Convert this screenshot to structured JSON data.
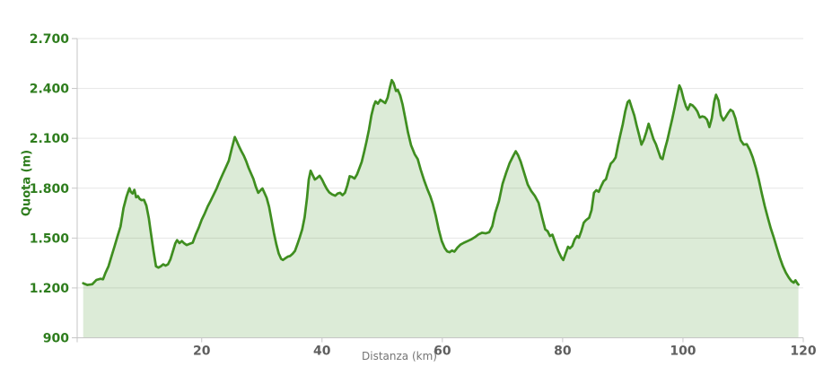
{
  "chart_data": {
    "type": "area",
    "title": "",
    "xlabel": "Distanza (km)",
    "ylabel": "Quota (m)",
    "xlim": [
      -0.7,
      120
    ],
    "ylim": [
      900,
      2700
    ],
    "grid": "horizontal",
    "legend": "none",
    "x_ticks": [
      {
        "value": 20,
        "label": "20"
      },
      {
        "value": 40,
        "label": "40"
      },
      {
        "value": 60,
        "label": "60"
      },
      {
        "value": 80,
        "label": "80"
      },
      {
        "value": 100,
        "label": "100"
      },
      {
        "value": 120,
        "label": "120"
      }
    ],
    "y_ticks": [
      {
        "value": 900,
        "label": "900"
      },
      {
        "value": 1200,
        "label": "1.200"
      },
      {
        "value": 1500,
        "label": "1.500"
      },
      {
        "value": 1800,
        "label": "1.800"
      },
      {
        "value": 2100,
        "label": "2.100"
      },
      {
        "value": 2400,
        "label": "2.400"
      },
      {
        "value": 2700,
        "label": "2.700"
      }
    ],
    "colors": {
      "line": "#3f8e20",
      "fill": "rgba(63,142,32,0.18)",
      "y_label": "#2e7d1d",
      "x_label": "#5f5f5f",
      "axis_title_x": "#757575",
      "grid": "#e6e6e6",
      "axis": "#c6c6c6"
    },
    "series": [
      {
        "name": "Quota",
        "points": [
          [
            0.3,
            1228
          ],
          [
            1,
            1218
          ],
          [
            1.8,
            1222
          ],
          [
            2.5,
            1248
          ],
          [
            3.2,
            1255
          ],
          [
            3.6,
            1252
          ],
          [
            4,
            1290
          ],
          [
            4.5,
            1330
          ],
          [
            5,
            1390
          ],
          [
            5.5,
            1450
          ],
          [
            6,
            1510
          ],
          [
            6.5,
            1570
          ],
          [
            7,
            1680
          ],
          [
            7.5,
            1750
          ],
          [
            7.8,
            1782
          ],
          [
            8,
            1800
          ],
          [
            8.2,
            1778
          ],
          [
            8.5,
            1768
          ],
          [
            8.8,
            1790
          ],
          [
            9.1,
            1745
          ],
          [
            9.4,
            1752
          ],
          [
            9.7,
            1735
          ],
          [
            10,
            1728
          ],
          [
            10.4,
            1730
          ],
          [
            10.8,
            1695
          ],
          [
            11.2,
            1620
          ],
          [
            11.6,
            1520
          ],
          [
            12,
            1420
          ],
          [
            12.4,
            1330
          ],
          [
            12.8,
            1322
          ],
          [
            13.2,
            1330
          ],
          [
            13.6,
            1342
          ],
          [
            14,
            1334
          ],
          [
            14.4,
            1342
          ],
          [
            14.8,
            1372
          ],
          [
            15.2,
            1420
          ],
          [
            15.6,
            1468
          ],
          [
            15.9,
            1487
          ],
          [
            16.3,
            1470
          ],
          [
            16.7,
            1482
          ],
          [
            17.1,
            1468
          ],
          [
            17.5,
            1458
          ],
          [
            18,
            1465
          ],
          [
            18.5,
            1472
          ],
          [
            19,
            1520
          ],
          [
            19.5,
            1562
          ],
          [
            20,
            1610
          ],
          [
            20.5,
            1648
          ],
          [
            21,
            1690
          ],
          [
            21.5,
            1725
          ],
          [
            22,
            1762
          ],
          [
            22.5,
            1800
          ],
          [
            23,
            1845
          ],
          [
            23.5,
            1885
          ],
          [
            24,
            1925
          ],
          [
            24.5,
            1965
          ],
          [
            25,
            2040
          ],
          [
            25.5,
            2108
          ],
          [
            25.8,
            2085
          ],
          [
            26.2,
            2052
          ],
          [
            26.6,
            2022
          ],
          [
            27,
            1995
          ],
          [
            27.4,
            1962
          ],
          [
            27.8,
            1922
          ],
          [
            28.2,
            1888
          ],
          [
            28.6,
            1855
          ],
          [
            29,
            1808
          ],
          [
            29.4,
            1772
          ],
          [
            29.8,
            1788
          ],
          [
            30.1,
            1798
          ],
          [
            30.4,
            1775
          ],
          [
            30.8,
            1742
          ],
          [
            31.2,
            1688
          ],
          [
            31.6,
            1610
          ],
          [
            32,
            1530
          ],
          [
            32.4,
            1462
          ],
          [
            32.8,
            1408
          ],
          [
            33.2,
            1375
          ],
          [
            33.5,
            1368
          ],
          [
            33.9,
            1378
          ],
          [
            34.3,
            1388
          ],
          [
            34.7,
            1392
          ],
          [
            35.1,
            1405
          ],
          [
            35.5,
            1422
          ],
          [
            35.9,
            1462
          ],
          [
            36.3,
            1505
          ],
          [
            36.7,
            1552
          ],
          [
            37.1,
            1625
          ],
          [
            37.5,
            1738
          ],
          [
            37.8,
            1852
          ],
          [
            38.1,
            1905
          ],
          [
            38.4,
            1882
          ],
          [
            38.8,
            1852
          ],
          [
            39.2,
            1862
          ],
          [
            39.6,
            1875
          ],
          [
            40,
            1852
          ],
          [
            40.4,
            1822
          ],
          [
            40.8,
            1795
          ],
          [
            41.2,
            1775
          ],
          [
            41.7,
            1762
          ],
          [
            42.2,
            1755
          ],
          [
            42.6,
            1768
          ],
          [
            43,
            1772
          ],
          [
            43.4,
            1758
          ],
          [
            43.8,
            1772
          ],
          [
            44.2,
            1815
          ],
          [
            44.6,
            1872
          ],
          [
            45,
            1868
          ],
          [
            45.4,
            1858
          ],
          [
            45.8,
            1882
          ],
          [
            46.2,
            1920
          ],
          [
            46.6,
            1958
          ],
          [
            47,
            2018
          ],
          [
            47.4,
            2082
          ],
          [
            47.8,
            2152
          ],
          [
            48.2,
            2238
          ],
          [
            48.6,
            2295
          ],
          [
            48.9,
            2322
          ],
          [
            49.3,
            2308
          ],
          [
            49.7,
            2332
          ],
          [
            50.1,
            2322
          ],
          [
            50.5,
            2312
          ],
          [
            50.9,
            2345
          ],
          [
            51.3,
            2408
          ],
          [
            51.6,
            2450
          ],
          [
            51.9,
            2432
          ],
          [
            52.3,
            2385
          ],
          [
            52.6,
            2392
          ],
          [
            53,
            2358
          ],
          [
            53.4,
            2302
          ],
          [
            53.8,
            2228
          ],
          [
            54.3,
            2135
          ],
          [
            54.8,
            2058
          ],
          [
            55.4,
            2005
          ],
          [
            55.9,
            1975
          ],
          [
            56.4,
            1912
          ],
          [
            57,
            1845
          ],
          [
            57.5,
            1795
          ],
          [
            58,
            1752
          ],
          [
            58.4,
            1708
          ],
          [
            58.9,
            1635
          ],
          [
            59.4,
            1552
          ],
          [
            59.9,
            1482
          ],
          [
            60.4,
            1440
          ],
          [
            60.8,
            1420
          ],
          [
            61.2,
            1415
          ],
          [
            61.6,
            1425
          ],
          [
            62,
            1418
          ],
          [
            62.5,
            1442
          ],
          [
            63,
            1460
          ],
          [
            63.6,
            1472
          ],
          [
            64.2,
            1482
          ],
          [
            64.8,
            1492
          ],
          [
            65.4,
            1505
          ],
          [
            66,
            1522
          ],
          [
            66.6,
            1532
          ],
          [
            67.2,
            1528
          ],
          [
            67.8,
            1535
          ],
          [
            68.3,
            1572
          ],
          [
            68.8,
            1652
          ],
          [
            69.4,
            1722
          ],
          [
            70,
            1825
          ],
          [
            70.6,
            1892
          ],
          [
            71.2,
            1952
          ],
          [
            71.8,
            1995
          ],
          [
            72.2,
            2022
          ],
          [
            72.6,
            1998
          ],
          [
            73,
            1962
          ],
          [
            73.6,
            1892
          ],
          [
            74.2,
            1822
          ],
          [
            74.8,
            1782
          ],
          [
            75.4,
            1752
          ],
          [
            76,
            1712
          ],
          [
            76.6,
            1622
          ],
          [
            77.1,
            1552
          ],
          [
            77.5,
            1542
          ],
          [
            77.9,
            1512
          ],
          [
            78.3,
            1520
          ],
          [
            78.8,
            1468
          ],
          [
            79.3,
            1420
          ],
          [
            79.8,
            1382
          ],
          [
            80.1,
            1368
          ],
          [
            80.5,
            1408
          ],
          [
            80.9,
            1448
          ],
          [
            81.2,
            1438
          ],
          [
            81.6,
            1452
          ],
          [
            82,
            1492
          ],
          [
            82.4,
            1512
          ],
          [
            82.7,
            1502
          ],
          [
            83.1,
            1542
          ],
          [
            83.5,
            1592
          ],
          [
            83.9,
            1608
          ],
          [
            84.4,
            1622
          ],
          [
            84.8,
            1668
          ],
          [
            85.2,
            1772
          ],
          [
            85.6,
            1788
          ],
          [
            86,
            1778
          ],
          [
            86.4,
            1812
          ],
          [
            86.8,
            1842
          ],
          [
            87.2,
            1855
          ],
          [
            87.6,
            1905
          ],
          [
            88,
            1948
          ],
          [
            88.4,
            1962
          ],
          [
            88.8,
            1985
          ],
          [
            89.2,
            2058
          ],
          [
            89.6,
            2122
          ],
          [
            90,
            2185
          ],
          [
            90.4,
            2262
          ],
          [
            90.8,
            2318
          ],
          [
            91.1,
            2328
          ],
          [
            91.5,
            2282
          ],
          [
            91.9,
            2238
          ],
          [
            92.3,
            2178
          ],
          [
            92.7,
            2122
          ],
          [
            93.1,
            2062
          ],
          [
            93.5,
            2092
          ],
          [
            93.9,
            2138
          ],
          [
            94.3,
            2188
          ],
          [
            94.7,
            2142
          ],
          [
            95.1,
            2095
          ],
          [
            95.5,
            2065
          ],
          [
            95.9,
            2022
          ],
          [
            96.3,
            1982
          ],
          [
            96.6,
            1975
          ],
          [
            97,
            2035
          ],
          [
            97.4,
            2088
          ],
          [
            97.8,
            2152
          ],
          [
            98.2,
            2215
          ],
          [
            98.6,
            2282
          ],
          [
            99,
            2352
          ],
          [
            99.4,
            2418
          ],
          [
            99.7,
            2395
          ],
          [
            100.1,
            2338
          ],
          [
            100.5,
            2292
          ],
          [
            100.8,
            2272
          ],
          [
            101.2,
            2305
          ],
          [
            101.6,
            2298
          ],
          [
            102,
            2282
          ],
          [
            102.4,
            2262
          ],
          [
            102.8,
            2225
          ],
          [
            103.2,
            2232
          ],
          [
            103.6,
            2228
          ],
          [
            104,
            2212
          ],
          [
            104.4,
            2168
          ],
          [
            104.8,
            2222
          ],
          [
            105.2,
            2322
          ],
          [
            105.5,
            2362
          ],
          [
            105.9,
            2328
          ],
          [
            106.3,
            2238
          ],
          [
            106.7,
            2208
          ],
          [
            107.1,
            2228
          ],
          [
            107.5,
            2252
          ],
          [
            107.9,
            2272
          ],
          [
            108.3,
            2262
          ],
          [
            108.7,
            2222
          ],
          [
            109.1,
            2162
          ],
          [
            109.6,
            2088
          ],
          [
            110.1,
            2062
          ],
          [
            110.6,
            2065
          ],
          [
            111.1,
            2032
          ],
          [
            111.6,
            1985
          ],
          [
            112.1,
            1925
          ],
          [
            112.6,
            1852
          ],
          [
            113.1,
            1768
          ],
          [
            113.6,
            1692
          ],
          [
            114.1,
            1622
          ],
          [
            114.6,
            1558
          ],
          [
            115.1,
            1502
          ],
          [
            115.6,
            1442
          ],
          [
            116.1,
            1382
          ],
          [
            116.6,
            1332
          ],
          [
            117.1,
            1292
          ],
          [
            117.6,
            1262
          ],
          [
            118,
            1242
          ],
          [
            118.4,
            1232
          ],
          [
            118.7,
            1246
          ],
          [
            119,
            1228
          ],
          [
            119.2,
            1220
          ]
        ]
      }
    ]
  }
}
